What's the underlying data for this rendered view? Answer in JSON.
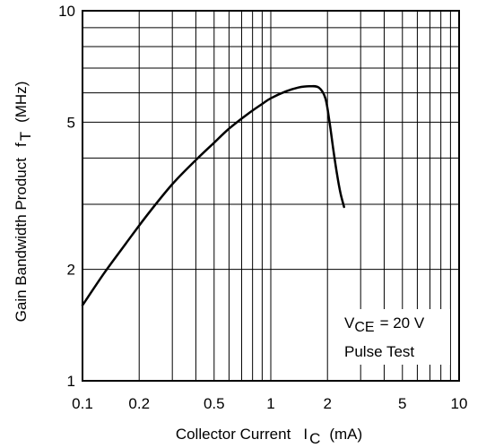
{
  "chart_data": {
    "type": "line",
    "title": "",
    "x_scale": "log",
    "y_scale": "log",
    "xlim": [
      0.1,
      10
    ],
    "ylim": [
      1,
      10
    ],
    "x_ticks": [
      "0.1",
      "0.2",
      "0.5",
      "1",
      "2",
      "5",
      "10"
    ],
    "y_ticks": [
      "1",
      "2",
      "5",
      "10"
    ],
    "xlabel": {
      "main": "Collector Current",
      "symbol": "I",
      "subscript": "C",
      "unit": "(mA)"
    },
    "ylabel": {
      "main": "Gain Bandwidth Product",
      "symbol": "f",
      "subscript": "T",
      "unit": "(MHz)"
    },
    "grid": true,
    "annotation": {
      "line1_symbol": "V",
      "line1_subscript": "CE",
      "line1_rest": "= 20 V",
      "line2": "Pulse Test"
    },
    "series": [
      {
        "x": [
          0.1,
          0.13,
          0.17,
          0.22,
          0.3,
          0.4,
          0.5,
          0.6,
          0.75,
          0.9,
          1.0,
          1.2,
          1.4,
          1.6,
          1.8,
          1.95,
          2.05,
          2.15,
          2.25,
          2.35,
          2.45
        ],
        "y": [
          1.6,
          1.95,
          2.35,
          2.8,
          3.4,
          3.95,
          4.4,
          4.8,
          5.25,
          5.6,
          5.8,
          6.05,
          6.2,
          6.25,
          6.2,
          5.8,
          5.0,
          4.2,
          3.6,
          3.2,
          2.95
        ]
      }
    ]
  }
}
